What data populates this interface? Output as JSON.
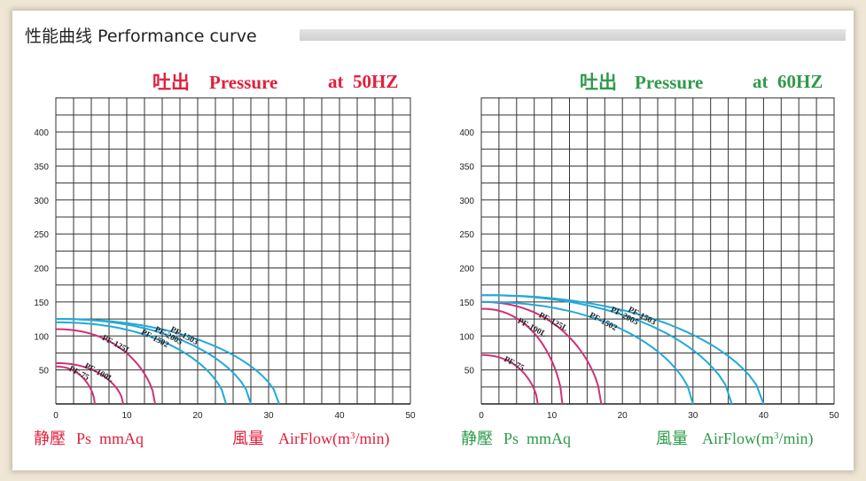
{
  "header": {
    "title": "性能曲线 Performance curve"
  },
  "colors": {
    "red": "#e0203c",
    "green": "#2e9a4a",
    "pink_curve": "#d0307a",
    "blue_curve": "#22a9d8"
  },
  "charts": [
    {
      "title_cn": "吐出",
      "title_en": "Pressure",
      "freq": "at  50HZ",
      "ylabel_cn": "静壓",
      "ylabel_en": "Ps  mmAq",
      "xlabel_cn": "風量",
      "xlabel_en": "AirFlow(m",
      "xlabel_sup": "3",
      "xlabel_end": "/min)"
    },
    {
      "title_cn": "吐出",
      "title_en": "Pressure",
      "freq": "at  60HZ",
      "ylabel_cn": "静壓",
      "ylabel_en": "Ps  mmAq",
      "xlabel_cn": "風量",
      "xlabel_en": "AirFlow(m",
      "xlabel_sup": "3",
      "xlabel_end": "/min)"
    }
  ],
  "chart_data": [
    {
      "type": "line",
      "title": "吐出 Pressure at 50HZ",
      "xlabel": "風量 AirFlow(m3/min)",
      "ylabel": "静壓 Ps mmAq",
      "xlim": [
        0,
        50
      ],
      "ylim": [
        0,
        450
      ],
      "xticks": [
        0,
        10,
        20,
        30,
        40,
        50
      ],
      "yticks": [
        50,
        100,
        150,
        200,
        250,
        300,
        350,
        400
      ],
      "grid": true,
      "series": [
        {
          "name": "PF-75",
          "color": "pink",
          "max_pressure": 55,
          "max_flow": 5.5
        },
        {
          "name": "PF-100L",
          "color": "pink",
          "max_pressure": 60,
          "max_flow": 9.5
        },
        {
          "name": "PF-125L",
          "color": "pink",
          "max_pressure": 110,
          "max_flow": 14
        },
        {
          "name": "PF-1502",
          "color": "blue",
          "max_pressure": 120,
          "max_flow": 24
        },
        {
          "name": "PF-1503",
          "color": "blue",
          "max_pressure": 125,
          "max_flow": 31.5
        },
        {
          "name": "PF-2005",
          "color": "blue",
          "max_pressure": 125,
          "max_flow": 27.5
        }
      ]
    },
    {
      "type": "line",
      "title": "吐出 Pressure at 60HZ",
      "xlabel": "風量 AirFlow(m3/min)",
      "ylabel": "静壓 Ps mmAq",
      "xlim": [
        0,
        50
      ],
      "ylim": [
        0,
        450
      ],
      "xticks": [
        0,
        10,
        20,
        30,
        40,
        50
      ],
      "yticks": [
        50,
        100,
        150,
        200,
        250,
        300,
        350,
        400
      ],
      "grid": true,
      "series": [
        {
          "name": "PF-75",
          "color": "pink",
          "max_pressure": 72,
          "max_flow": 8
        },
        {
          "name": "PF-100L",
          "color": "pink",
          "max_pressure": 140,
          "max_flow": 11.5
        },
        {
          "name": "PF-125L",
          "color": "pink",
          "max_pressure": 150,
          "max_flow": 17
        },
        {
          "name": "PF-1502",
          "color": "blue",
          "max_pressure": 150,
          "max_flow": 30
        },
        {
          "name": "PF-1503",
          "color": "blue",
          "max_pressure": 160,
          "max_flow": 40
        },
        {
          "name": "PF-2005",
          "color": "blue",
          "max_pressure": 160,
          "max_flow": 35.5
        }
      ]
    }
  ]
}
